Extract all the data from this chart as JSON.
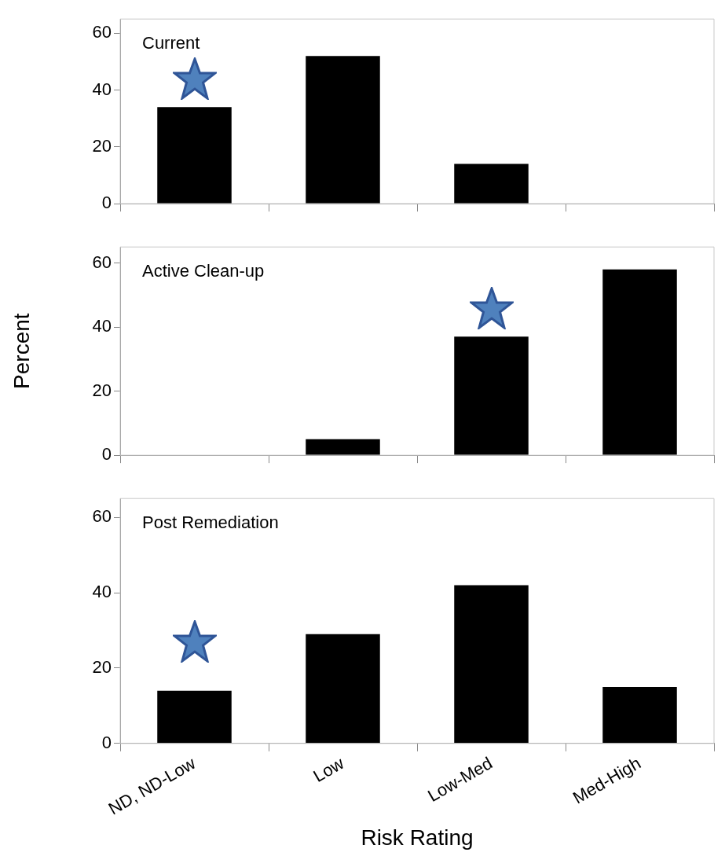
{
  "chart_data": [
    {
      "type": "bar",
      "title": "Current",
      "categories": [
        null,
        null,
        null,
        null
      ],
      "values": [
        34,
        52,
        14,
        0
      ],
      "color": "#000000",
      "ylim": [
        0,
        65
      ],
      "yticks": [
        0,
        20,
        40,
        60
      ],
      "grid": false
    },
    {
      "type": "bar",
      "title": "Active Clean-up",
      "ylabel": "Percent",
      "categories": [
        null,
        null,
        null,
        null
      ],
      "values": [
        0,
        5,
        37,
        58
      ],
      "color": "#000000",
      "ylim": [
        0,
        65
      ],
      "yticks": [
        0,
        20,
        40,
        60
      ],
      "grid": false
    },
    {
      "type": "bar",
      "title": "Post Remediation",
      "xlabel": "Risk Rating",
      "categories": [
        "ND, ND-Low",
        "Low",
        "Low-Med",
        "Med-High"
      ],
      "values": [
        14,
        29,
        42,
        15
      ],
      "color": "#000000",
      "ylim": [
        0,
        65
      ],
      "yticks": [
        0,
        20,
        40,
        60
      ],
      "grid": false
    }
  ]
}
